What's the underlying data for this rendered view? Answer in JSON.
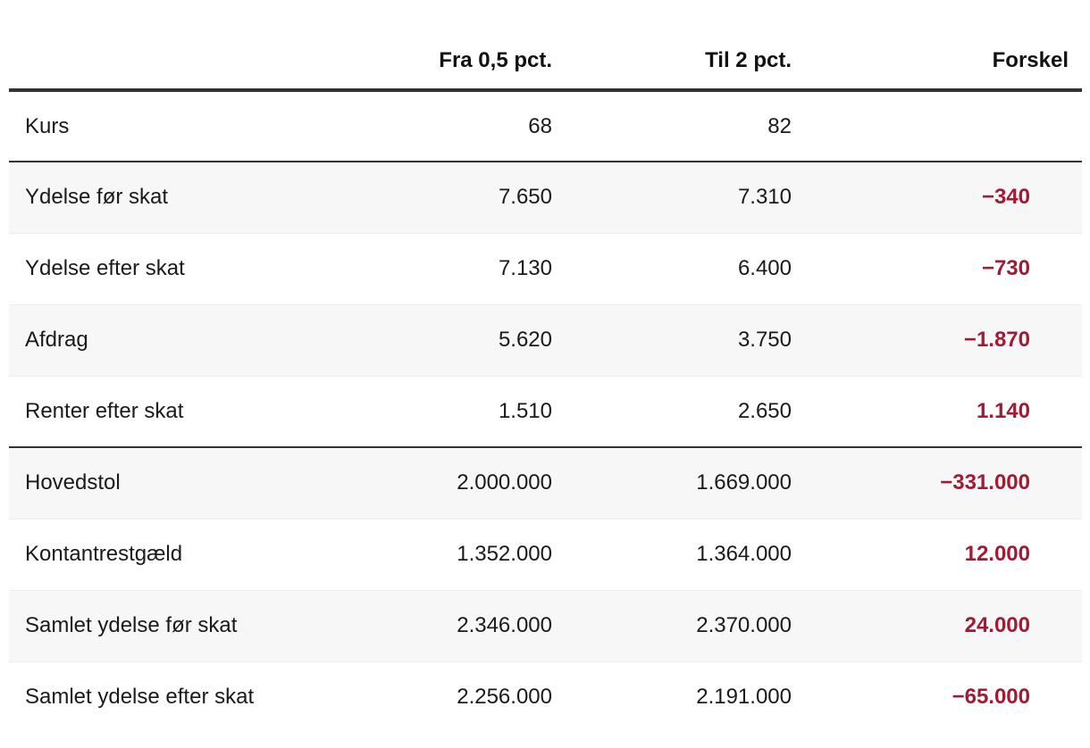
{
  "chart_data": {
    "type": "table",
    "columns": [
      "",
      "Fra 0,5 pct.",
      "Til 2 pct.",
      "Forskel"
    ],
    "rows": [
      {
        "label": "Kurs",
        "fra": "68",
        "til": "82",
        "forskel": ""
      },
      {
        "label": "Ydelse før skat",
        "fra": "7.650",
        "til": "7.310",
        "forskel": "−340"
      },
      {
        "label": "Ydelse efter skat",
        "fra": "7.130",
        "til": "6.400",
        "forskel": "−730"
      },
      {
        "label": "Afdrag",
        "fra": "5.620",
        "til": "3.750",
        "forskel": "−1.870"
      },
      {
        "label": "Renter efter skat",
        "fra": "1.510",
        "til": "2.650",
        "forskel": "1.140"
      },
      {
        "label": "Hovedstol",
        "fra": "2.000.000",
        "til": "1.669.000",
        "forskel": "−331.000"
      },
      {
        "label": "Kontantrestgæld",
        "fra": "1.352.000",
        "til": "1.364.000",
        "forskel": "12.000"
      },
      {
        "label": "Samlet ydelse før skat",
        "fra": "2.346.000",
        "til": "2.370.000",
        "forskel": "24.000"
      },
      {
        "label": "Samlet ydelse efter skat",
        "fra": "2.256.000",
        "til": "2.191.000",
        "forskel": "−65.000"
      }
    ],
    "layout_hints": {
      "section_breaks_after_rows": [
        0,
        4
      ],
      "shaded_row_indices": [
        1,
        3,
        5,
        7
      ],
      "numeric_columns_alignment": "right"
    }
  },
  "colors": {
    "diff_red": "#a31a35",
    "rule_dark": "#333333",
    "row_shade": "#f7f7f7",
    "text": "#1a1a1a"
  }
}
